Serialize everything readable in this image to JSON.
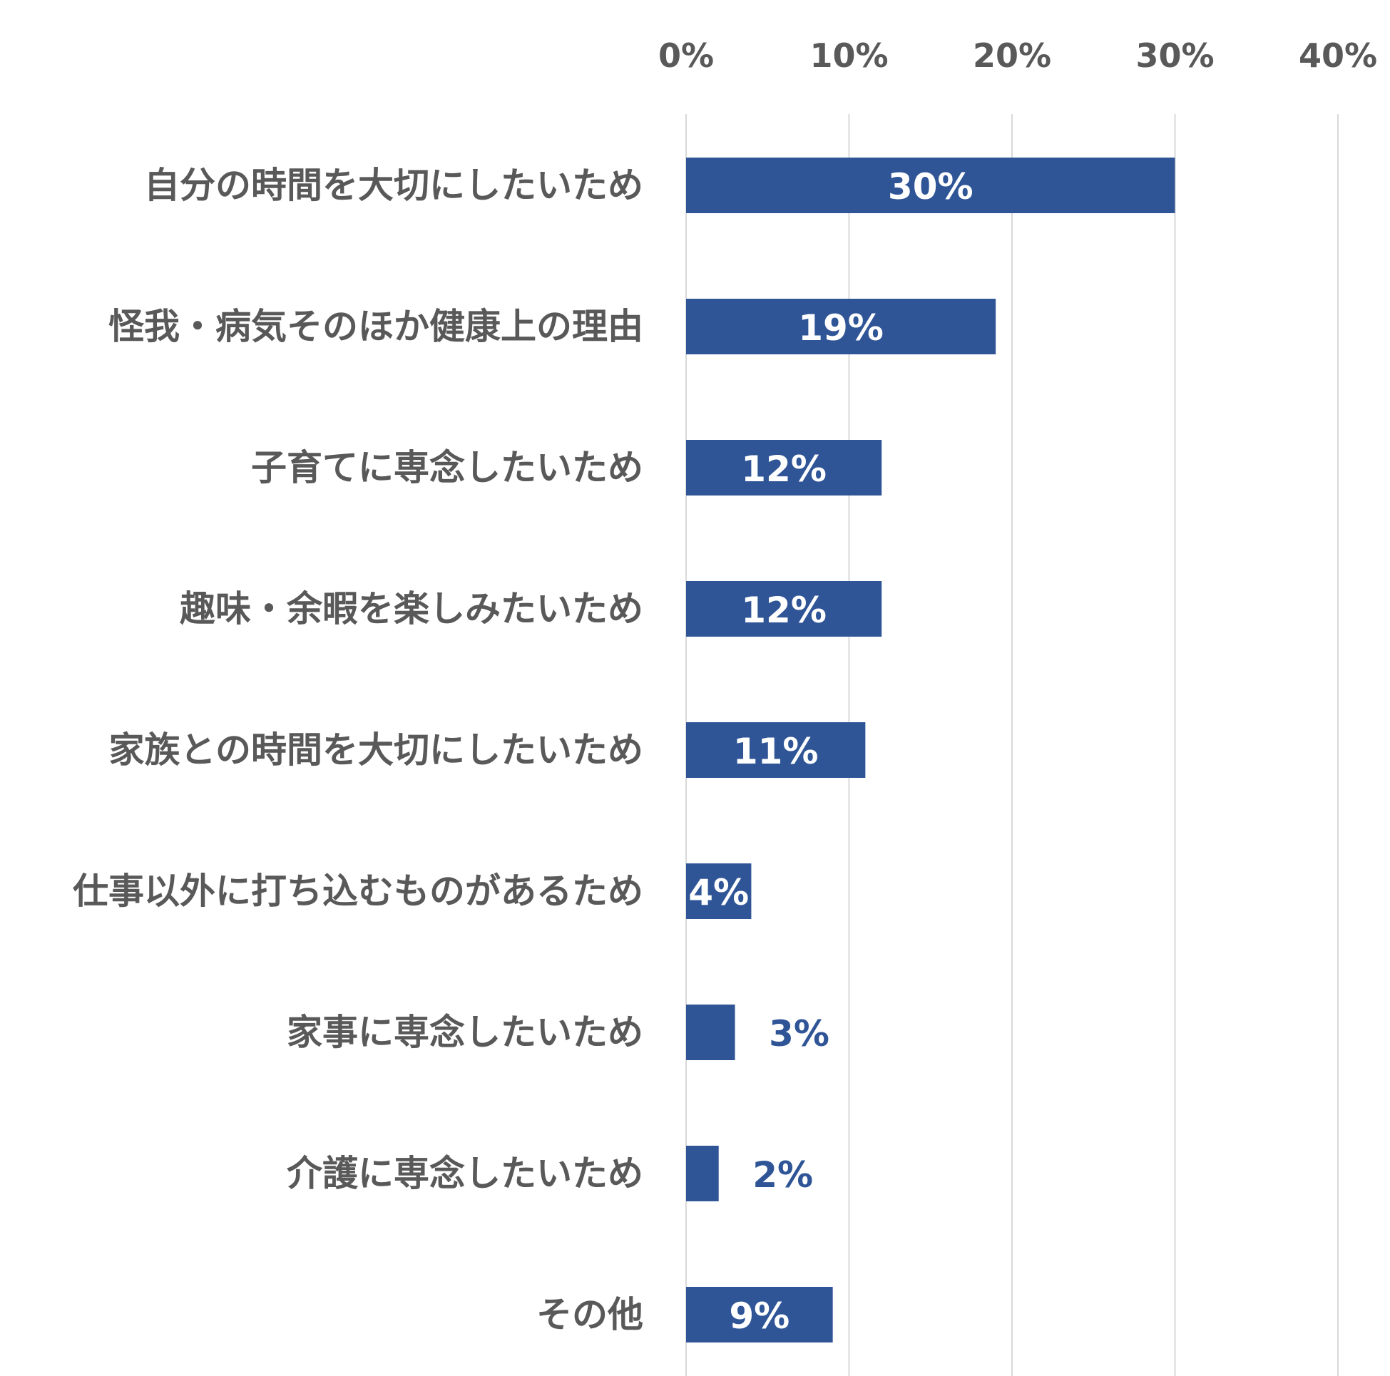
{
  "chart_data": {
    "type": "bar",
    "orientation": "horizontal",
    "categories": [
      "自分の時間を大切にしたいため",
      "怪我・病気そのほか健康上の理由",
      "子育てに専念したいため",
      "趣味・余暇を楽しみたいため",
      "家族との時間を大切にしたいため",
      "仕事以外に打ち込むものがあるため",
      "家事に専念したいため",
      "介護に専念したいため",
      "その他"
    ],
    "values": [
      30,
      19,
      12,
      12,
      11,
      4,
      3,
      2,
      9
    ],
    "data_labels": [
      "30%",
      "19%",
      "12%",
      "12%",
      "11%",
      "4%",
      "3%",
      "2%",
      "9%"
    ],
    "xlim": [
      0,
      40
    ],
    "ticks": [
      0,
      10,
      20,
      30,
      40
    ],
    "tick_labels": [
      "0%",
      "10%",
      "20%",
      "30%",
      "40%"
    ],
    "axis_position": "top",
    "grid": true,
    "bar_color": "#2F5597",
    "title": "",
    "xlabel": "",
    "ylabel": ""
  }
}
